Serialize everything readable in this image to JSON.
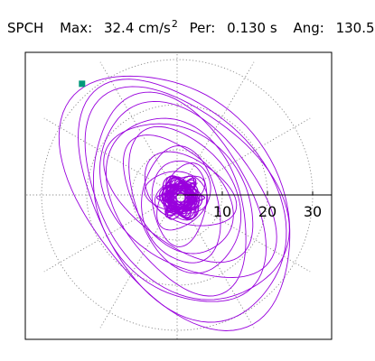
{
  "header": {
    "station": "SPCH",
    "max_label": "Max:",
    "max_value": "32.4 cm/s",
    "max_unit_exp": "2",
    "period_label": "Per:",
    "period_value": "0.130 s",
    "angle_label": "Ang:",
    "angle_value": "130.5"
  },
  "colors": {
    "trace": "#9900dd",
    "marker": "#00997a",
    "grid": "#888888",
    "axis": "#000000"
  },
  "chart_data": {
    "type": "polar-orbit",
    "r_max": 32.4,
    "rings": [
      10,
      20,
      30
    ],
    "tick_labels": [
      "10",
      "20",
      "30"
    ],
    "spokes_deg": [
      0,
      30,
      60,
      90,
      120,
      150,
      180,
      210,
      240,
      270,
      300,
      330
    ],
    "max_point": {
      "r": 32.4,
      "angle_deg": 130.5
    },
    "orbits": [
      {
        "a": 32.0,
        "b": 20.5,
        "rot": 128,
        "cx": 0.5,
        "cy": -0.5
      },
      {
        "a": 29.5,
        "b": 19.0,
        "rot": 124,
        "cx": 1.0,
        "cy": -1.0
      },
      {
        "a": 27.0,
        "b": 18.0,
        "rot": 132,
        "cx": 1.5,
        "cy": 0.0
      },
      {
        "a": 25.0,
        "b": 16.5,
        "rot": 120,
        "cx": 0.0,
        "cy": -1.5
      },
      {
        "a": 23.0,
        "b": 15.0,
        "rot": 135,
        "cx": 2.0,
        "cy": 0.5
      },
      {
        "a": 21.0,
        "b": 13.5,
        "rot": 118,
        "cx": 0.5,
        "cy": -2.0
      },
      {
        "a": 19.0,
        "b": 12.0,
        "rot": 140,
        "cx": 1.0,
        "cy": 1.0
      },
      {
        "a": 17.0,
        "b": 11.0,
        "rot": 115,
        "cx": 1.5,
        "cy": -1.0
      },
      {
        "a": 15.0,
        "b": 9.5,
        "rot": 130,
        "cx": 0.0,
        "cy": 0.0
      },
      {
        "a": 13.0,
        "b": 8.5,
        "rot": 100,
        "cx": 1.0,
        "cy": -2.5
      },
      {
        "a": 11.0,
        "b": 7.0,
        "rot": 150,
        "cx": 2.5,
        "cy": 1.0
      },
      {
        "a": 9.5,
        "b": 6.0,
        "rot": 90,
        "cx": 0.5,
        "cy": -1.5
      },
      {
        "a": 8.0,
        "b": 5.0,
        "rot": 60,
        "cx": 1.5,
        "cy": -0.5
      },
      {
        "a": 7.0,
        "b": 4.5,
        "rot": 170,
        "cx": 0.0,
        "cy": 0.5
      },
      {
        "a": 6.0,
        "b": 3.5,
        "rot": 30,
        "cx": 0.5,
        "cy": 0.0
      },
      {
        "a": 5.0,
        "b": 3.0,
        "rot": 110,
        "cx": 1.0,
        "cy": -1.0
      },
      {
        "a": 4.0,
        "b": 2.5,
        "rot": 80,
        "cx": -0.5,
        "cy": 0.0
      },
      {
        "a": 3.0,
        "b": 2.0,
        "rot": 140,
        "cx": 0.0,
        "cy": -0.5
      }
    ]
  }
}
